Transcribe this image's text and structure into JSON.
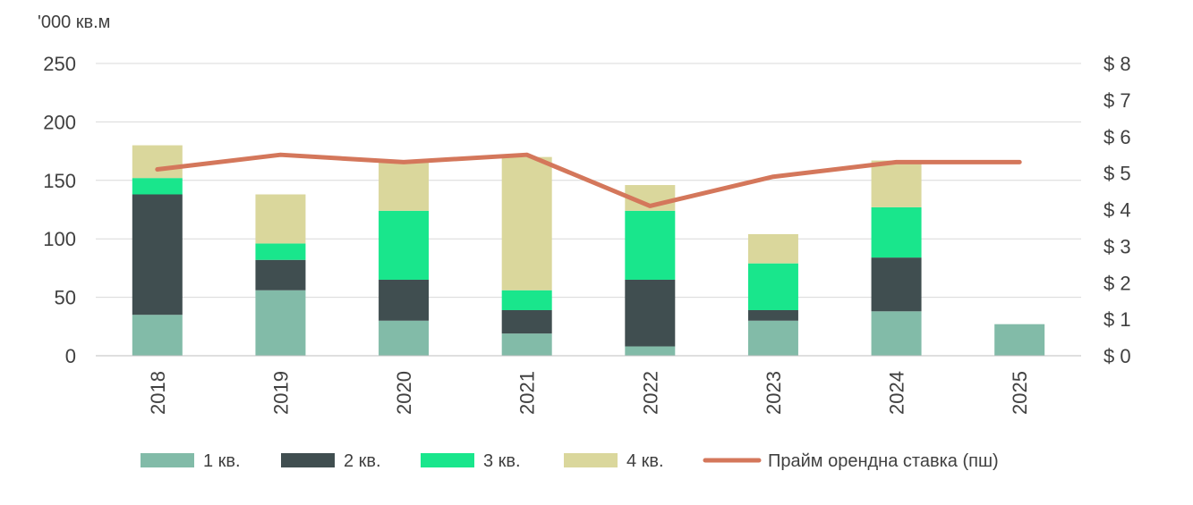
{
  "chart_data": {
    "type": "bar",
    "stacked": true,
    "unit_label": "'000 кв.м",
    "categories": [
      "2018",
      "2019",
      "2020",
      "2021",
      "2022",
      "2023",
      "2024",
      "2025"
    ],
    "series": [
      {
        "name": "1 кв.",
        "color": "#82BBA8",
        "values": [
          35,
          56,
          30,
          19,
          8,
          30,
          38,
          27
        ]
      },
      {
        "name": "2 кв.",
        "color": "#404E50",
        "values": [
          103,
          26,
          35,
          20,
          57,
          9,
          46,
          0
        ]
      },
      {
        "name": "3 кв.",
        "color": "#19E68C",
        "values": [
          14,
          14,
          59,
          17,
          59,
          40,
          43,
          0
        ]
      },
      {
        "name": "4 кв.",
        "color": "#DAD79C",
        "values": [
          28,
          42,
          42,
          114,
          22,
          25,
          40,
          0
        ]
      }
    ],
    "line_series": {
      "name": "Прайм орендна ставка (пш)",
      "color": "#D4775B",
      "axis": "right",
      "values": [
        5.1,
        5.5,
        5.3,
        5.5,
        4.1,
        4.9,
        5.3,
        5.3
      ]
    },
    "y_left": {
      "min": 0,
      "max": 250,
      "ticks": [
        "0",
        "50",
        "100",
        "150",
        "200",
        "250"
      ]
    },
    "y_right": {
      "min": 0,
      "max": 8,
      "ticks": [
        "$ 0",
        "$ 1",
        "$ 2",
        "$ 3",
        "$ 4",
        "$ 5",
        "$ 6",
        "$ 7",
        "$ 8"
      ]
    },
    "grid": true,
    "legend_position": "bottom"
  }
}
